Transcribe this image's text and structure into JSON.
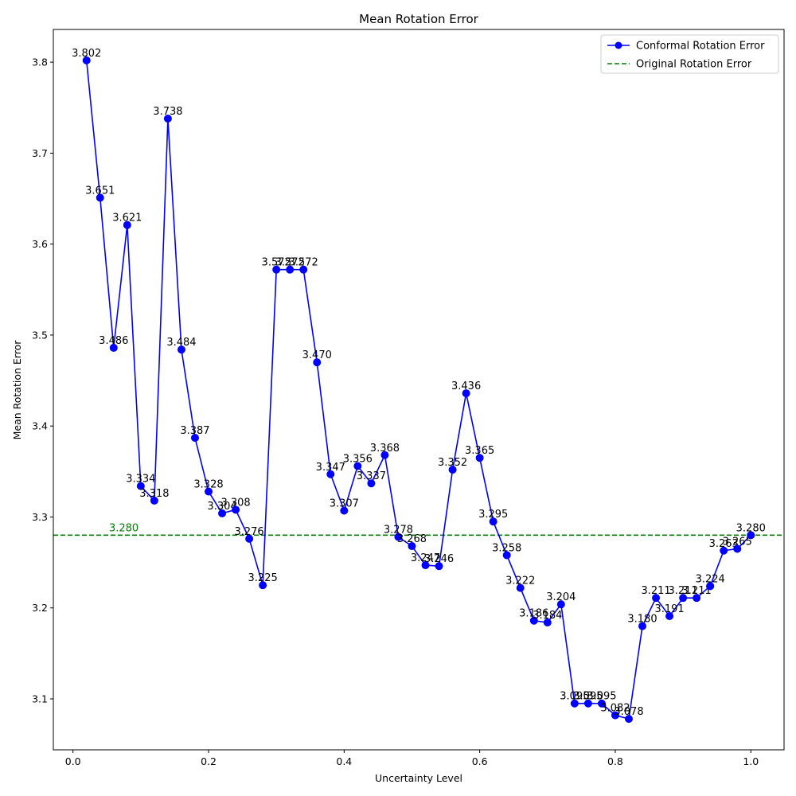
{
  "chart_data": {
    "type": "line",
    "title": "Mean Rotation Error",
    "xlabel": "Uncertainty Level",
    "ylabel": "Mean Rotation Error",
    "xlim": [
      -0.029,
      1.049
    ],
    "ylim": [
      3.044,
      3.836
    ],
    "x_ticks": [
      "0.0",
      "0.2",
      "0.4",
      "0.6",
      "0.8",
      "1.0"
    ],
    "y_ticks": [
      "3.1",
      "3.2",
      "3.3",
      "3.4",
      "3.5",
      "3.6",
      "3.7",
      "3.8"
    ],
    "grid": false,
    "legend_position": "top-right",
    "series": [
      {
        "name": "Conformal Rotation Error",
        "color": "#0000ff",
        "style": "solid-with-circle-markers",
        "x": [
          0.02,
          0.04,
          0.06,
          0.08,
          0.1,
          0.12,
          0.14,
          0.16,
          0.18,
          0.2,
          0.22,
          0.24,
          0.26,
          0.28,
          0.3,
          0.32,
          0.34,
          0.36,
          0.38,
          0.4,
          0.42,
          0.44,
          0.46,
          0.48,
          0.5,
          0.52,
          0.54,
          0.56,
          0.58,
          0.6,
          0.62,
          0.64,
          0.66,
          0.68,
          0.7,
          0.72,
          0.74,
          0.76,
          0.78,
          0.8,
          0.82,
          0.84,
          0.86,
          0.88,
          0.9,
          0.92,
          0.94,
          0.96,
          0.98,
          1.0
        ],
        "values": [
          3.802,
          3.651,
          3.486,
          3.621,
          3.334,
          3.318,
          3.738,
          3.484,
          3.387,
          3.328,
          3.304,
          3.308,
          3.276,
          3.225,
          3.572,
          3.572,
          3.572,
          3.47,
          3.347,
          3.307,
          3.356,
          3.337,
          3.368,
          3.278,
          3.268,
          3.247,
          3.246,
          3.352,
          3.436,
          3.365,
          3.295,
          3.258,
          3.222,
          3.186,
          3.184,
          3.204,
          3.095,
          3.095,
          3.095,
          3.082,
          3.078,
          3.18,
          3.211,
          3.191,
          3.211,
          3.211,
          3.224,
          3.263,
          3.265,
          3.28
        ],
        "labels": [
          "3.802",
          "3.651",
          "3.486",
          "3.621",
          "3.334",
          "3.318",
          "3.738",
          "3.484",
          "3.387",
          "3.328",
          "3.304",
          "3.308",
          "3.276",
          "3.225",
          "3.572",
          "3.572",
          "3.572",
          "3.470",
          "3.347",
          "3.307",
          "3.356",
          "3.337",
          "3.368",
          "3.278",
          "3.268",
          "3.247",
          "3.246",
          "3.352",
          "3.436",
          "3.365",
          "3.295",
          "3.258",
          "3.222",
          "3.186",
          "3.184",
          "3.204",
          "3.095",
          "3.095",
          "3.095",
          "3.082",
          "3.078",
          "3.180",
          "3.211",
          "3.191",
          "3.211",
          "3.211",
          "3.224",
          "3.263",
          "3.265",
          "3.280"
        ]
      },
      {
        "name": "Original Rotation Error",
        "color": "#008000",
        "style": "dashed-horizontal",
        "value": 3.28,
        "label": "3.280"
      }
    ]
  }
}
